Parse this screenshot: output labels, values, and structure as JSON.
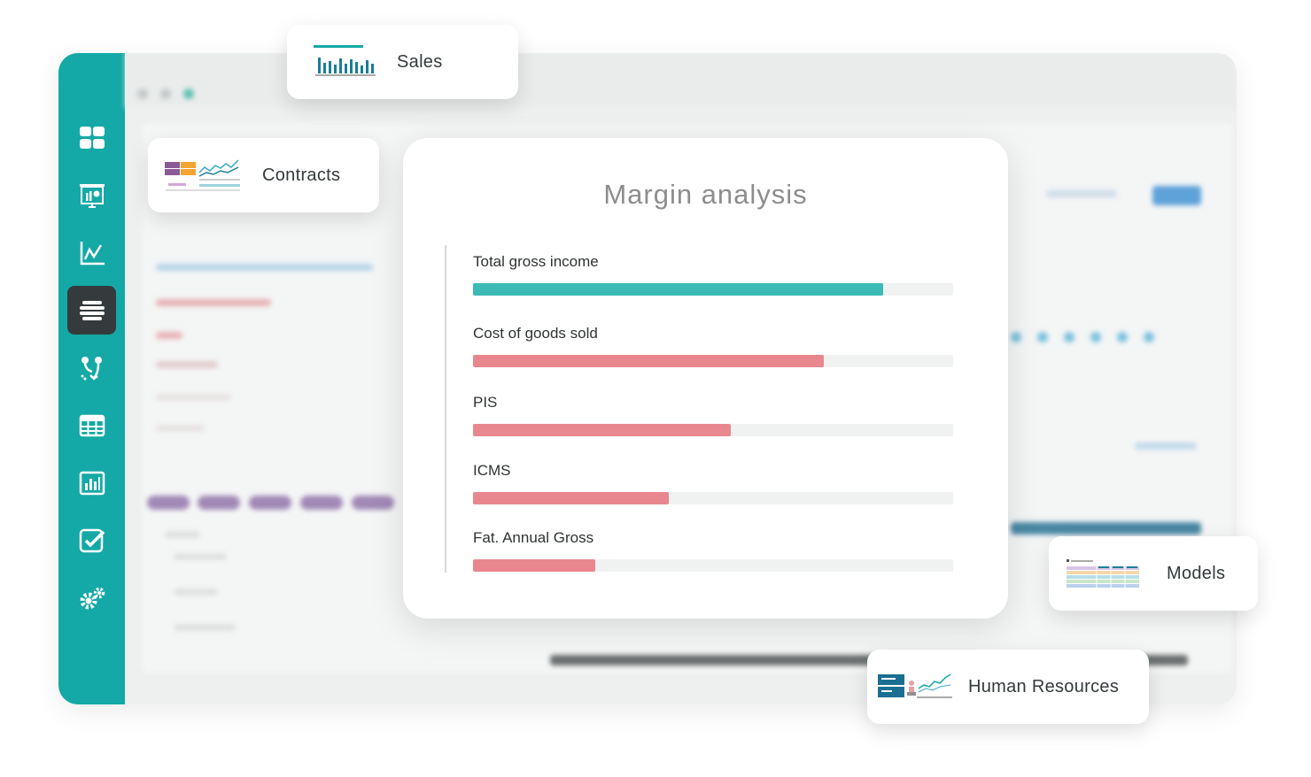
{
  "colors": {
    "brand_teal": "#14a9a6",
    "sidebar_active": "#353b3c",
    "bar_teal": "#3bbab6",
    "bar_red": "#e8878d",
    "track": "#f0f1f1"
  },
  "sidebar": {
    "items": [
      {
        "icon": "dashboard-grid-icon",
        "active": false
      },
      {
        "icon": "presentation-chart-icon",
        "active": false
      },
      {
        "icon": "line-chart-icon",
        "active": false
      },
      {
        "icon": "stacked-lines-icon",
        "active": true
      },
      {
        "icon": "workflow-icon",
        "active": false
      },
      {
        "icon": "table-icon",
        "active": false
      },
      {
        "icon": "bar-report-icon",
        "active": false
      },
      {
        "icon": "checkbox-icon",
        "active": false
      },
      {
        "icon": "gears-icon",
        "active": false
      }
    ]
  },
  "cards": {
    "sales": {
      "label": "Sales",
      "icon": "sales-chart-icon"
    },
    "contracts": {
      "label": "Contracts",
      "icon": "contracts-chart-icon"
    },
    "models": {
      "label": "Models",
      "icon": "models-table-icon"
    },
    "human_resources": {
      "label": "Human Resources",
      "icon": "hr-chart-icon"
    }
  },
  "margin_analysis": {
    "title": "Margin analysis",
    "metrics": [
      {
        "label": "Total gross income",
        "fraction": 0.855,
        "color": "#3bbab6"
      },
      {
        "label": "Cost of goods sold",
        "fraction": 0.73,
        "color": "#e8878d"
      },
      {
        "label": "PIS",
        "fraction": 0.537,
        "color": "#e8878d"
      },
      {
        "label": "ICMS",
        "fraction": 0.408,
        "color": "#e8878d"
      },
      {
        "label": "Fat. Annual Gross",
        "fraction": 0.255,
        "color": "#e8878d"
      }
    ]
  }
}
